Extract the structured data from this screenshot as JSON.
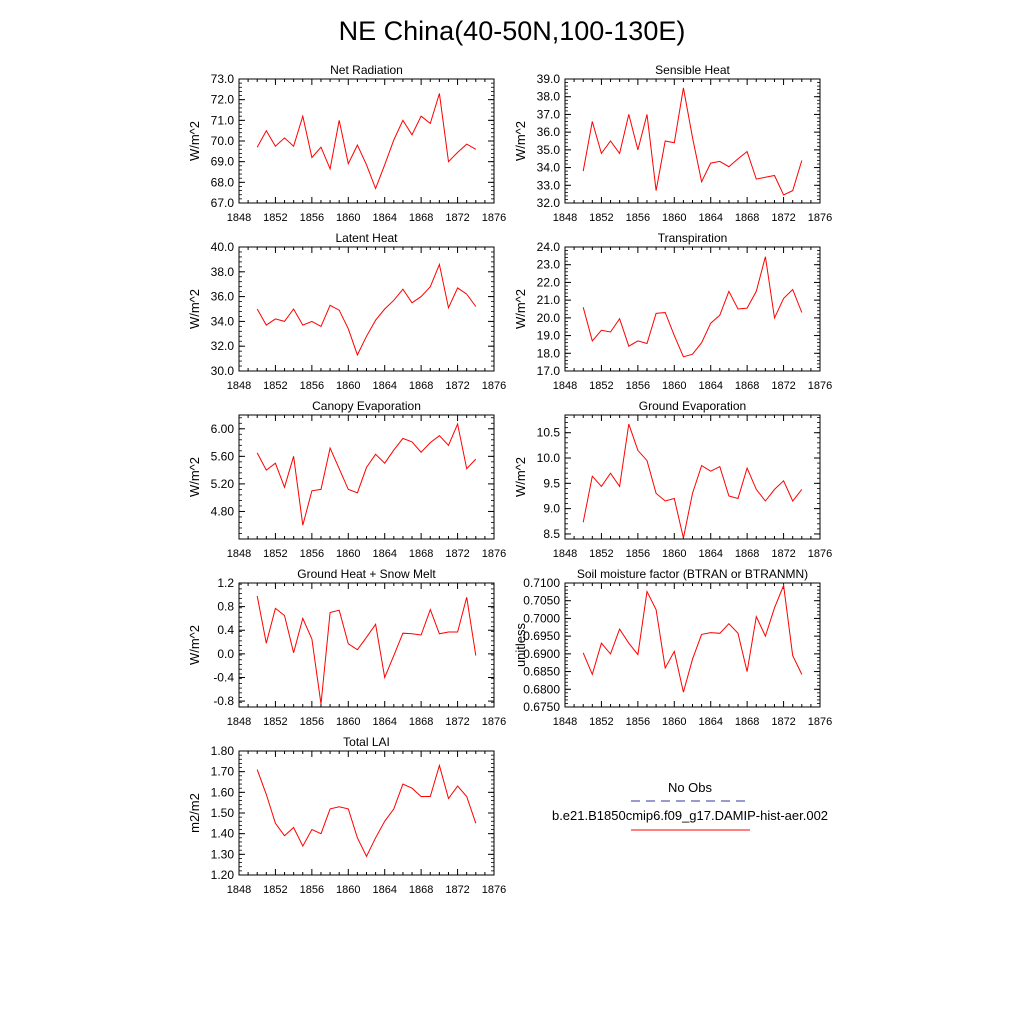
{
  "title": "NE China(40-50N,100-130E)",
  "legend": {
    "entries": [
      {
        "label": "No Obs",
        "color": "#3333aa",
        "dash": true
      },
      {
        "label": "b.e21.B1850cmip6.f09_g17.DAMIP-hist-aer.002",
        "color": "#ff0000",
        "dash": false
      }
    ]
  },
  "colors": {
    "series": "#ff0000",
    "obs": "#3333aa"
  },
  "chart_data": [
    {
      "type": "line",
      "title": "Net Radiation",
      "ylabel": "W/m^2",
      "xlim": [
        1848,
        1876
      ],
      "xticks": [
        1848,
        1852,
        1856,
        1860,
        1864,
        1868,
        1872,
        1876
      ],
      "ylim": [
        67.0,
        73.0
      ],
      "yticks": [
        "67.0",
        "68.0",
        "69.0",
        "70.0",
        "71.0",
        "72.0",
        "73.0"
      ],
      "x": [
        1850,
        1851,
        1852,
        1853,
        1854,
        1855,
        1856,
        1857,
        1858,
        1859,
        1860,
        1861,
        1862,
        1863,
        1864,
        1865,
        1866,
        1867,
        1868,
        1869,
        1870,
        1871,
        1872,
        1873,
        1874
      ],
      "series": [
        {
          "name": "b.e21.B1850cmip6.f09_g17.DAMIP-hist-aer.002",
          "values": [
            69.7,
            70.5,
            69.75,
            70.15,
            69.75,
            71.2,
            69.2,
            69.7,
            68.65,
            71.0,
            68.9,
            69.8,
            68.85,
            67.7,
            68.85,
            70.05,
            71.0,
            70.3,
            71.2,
            70.85,
            72.3,
            69.0,
            69.45,
            69.85,
            69.6
          ]
        }
      ]
    },
    {
      "type": "line",
      "title": "Sensible Heat",
      "ylabel": "W/m^2",
      "xlim": [
        1848,
        1876
      ],
      "xticks": [
        1848,
        1852,
        1856,
        1860,
        1864,
        1868,
        1872,
        1876
      ],
      "ylim": [
        32.0,
        39.0
      ],
      "yticks": [
        "32.0",
        "33.0",
        "34.0",
        "35.0",
        "36.0",
        "37.0",
        "38.0",
        "39.0"
      ],
      "x": [
        1850,
        1851,
        1852,
        1853,
        1854,
        1855,
        1856,
        1857,
        1858,
        1859,
        1860,
        1861,
        1862,
        1863,
        1864,
        1865,
        1866,
        1867,
        1868,
        1869,
        1870,
        1871,
        1872,
        1873,
        1874
      ],
      "series": [
        {
          "name": "b.e21.B1850cmip6.f09_g17.DAMIP-hist-aer.002",
          "values": [
            33.8,
            36.6,
            34.8,
            35.5,
            34.8,
            37.0,
            35.0,
            37.0,
            32.7,
            35.5,
            35.4,
            38.5,
            35.7,
            33.2,
            34.25,
            34.35,
            34.05,
            34.5,
            34.9,
            33.35,
            33.45,
            33.55,
            32.45,
            32.7,
            34.4
          ]
        }
      ]
    },
    {
      "type": "line",
      "title": "Latent Heat",
      "ylabel": "W/m^2",
      "xlim": [
        1848,
        1876
      ],
      "xticks": [
        1848,
        1852,
        1856,
        1860,
        1864,
        1868,
        1872,
        1876
      ],
      "ylim": [
        30.0,
        40.0
      ],
      "yticks": [
        "30.0",
        "32.0",
        "34.0",
        "36.0",
        "38.0",
        "40.0"
      ],
      "x": [
        1850,
        1851,
        1852,
        1853,
        1854,
        1855,
        1856,
        1857,
        1858,
        1859,
        1860,
        1861,
        1862,
        1863,
        1864,
        1865,
        1866,
        1867,
        1868,
        1869,
        1870,
        1871,
        1872,
        1873,
        1874
      ],
      "series": [
        {
          "name": "b.e21.B1850cmip6.f09_g17.DAMIP-hist-aer.002",
          "values": [
            35.0,
            33.7,
            34.2,
            34.0,
            35.0,
            33.7,
            34.0,
            33.6,
            35.3,
            34.9,
            33.4,
            31.3,
            32.8,
            34.1,
            35.0,
            35.7,
            36.6,
            35.5,
            36.0,
            36.8,
            38.6,
            35.1,
            36.7,
            36.2,
            35.2
          ]
        }
      ]
    },
    {
      "type": "line",
      "title": "Transpiration",
      "ylabel": "W/m^2",
      "xlim": [
        1848,
        1876
      ],
      "xticks": [
        1848,
        1852,
        1856,
        1860,
        1864,
        1868,
        1872,
        1876
      ],
      "ylim": [
        17.0,
        24.0
      ],
      "yticks": [
        "17.0",
        "18.0",
        "19.0",
        "20.0",
        "21.0",
        "22.0",
        "23.0",
        "24.0"
      ],
      "x": [
        1850,
        1851,
        1852,
        1853,
        1854,
        1855,
        1856,
        1857,
        1858,
        1859,
        1860,
        1861,
        1862,
        1863,
        1864,
        1865,
        1866,
        1867,
        1868,
        1869,
        1870,
        1871,
        1872,
        1873,
        1874
      ],
      "series": [
        {
          "name": "b.e21.B1850cmip6.f09_g17.DAMIP-hist-aer.002",
          "values": [
            20.6,
            18.7,
            19.3,
            19.2,
            19.95,
            18.4,
            18.7,
            18.55,
            20.25,
            20.3,
            19.0,
            17.8,
            17.95,
            18.6,
            19.7,
            20.15,
            21.5,
            20.5,
            20.55,
            21.5,
            23.45,
            20.0,
            21.1,
            21.6,
            20.3
          ]
        }
      ]
    },
    {
      "type": "line",
      "title": "Canopy Evaporation",
      "ylabel": "W/m^2",
      "xlim": [
        1848,
        1876
      ],
      "xticks": [
        1848,
        1852,
        1856,
        1860,
        1864,
        1868,
        1872,
        1876
      ],
      "ylim": [
        4.4,
        6.2
      ],
      "yticks": [
        "4.80",
        "5.20",
        "5.60",
        "6.00"
      ],
      "ytick_values": [
        4.8,
        5.2,
        5.6,
        6.0
      ],
      "x": [
        1850,
        1851,
        1852,
        1853,
        1854,
        1855,
        1856,
        1857,
        1858,
        1859,
        1860,
        1861,
        1862,
        1863,
        1864,
        1865,
        1866,
        1867,
        1868,
        1869,
        1870,
        1871,
        1872,
        1873,
        1874
      ],
      "series": [
        {
          "name": "b.e21.B1850cmip6.f09_g17.DAMIP-hist-aer.002",
          "values": [
            5.65,
            5.4,
            5.5,
            5.15,
            5.6,
            4.6,
            5.1,
            5.12,
            5.72,
            5.42,
            5.12,
            5.07,
            5.44,
            5.63,
            5.5,
            5.69,
            5.86,
            5.81,
            5.66,
            5.8,
            5.9,
            5.76,
            6.07,
            5.42,
            5.56
          ]
        }
      ]
    },
    {
      "type": "line",
      "title": "Ground Evaporation",
      "ylabel": "W/m^2",
      "xlim": [
        1848,
        1876
      ],
      "xticks": [
        1848,
        1852,
        1856,
        1860,
        1864,
        1868,
        1872,
        1876
      ],
      "ylim": [
        8.4,
        10.85
      ],
      "yticks": [
        "8.5",
        "9.0",
        "9.5",
        "10.0",
        "10.5"
      ],
      "ytick_values": [
        8.5,
        9.0,
        9.5,
        10.0,
        10.5
      ],
      "x": [
        1850,
        1851,
        1852,
        1853,
        1854,
        1855,
        1856,
        1857,
        1858,
        1859,
        1860,
        1861,
        1862,
        1863,
        1864,
        1865,
        1866,
        1867,
        1868,
        1869,
        1870,
        1871,
        1872,
        1873,
        1874
      ],
      "series": [
        {
          "name": "b.e21.B1850cmip6.f09_g17.DAMIP-hist-aer.002",
          "values": [
            8.73,
            9.64,
            9.44,
            9.7,
            9.44,
            10.67,
            10.15,
            9.95,
            9.3,
            9.15,
            9.2,
            8.42,
            9.3,
            9.85,
            9.74,
            9.83,
            9.25,
            9.2,
            9.8,
            9.38,
            9.15,
            9.38,
            9.55,
            9.15,
            9.38
          ]
        }
      ]
    },
    {
      "type": "line",
      "title": "Ground Heat + Snow Melt",
      "ylabel": "W/m^2",
      "xlim": [
        1848,
        1876
      ],
      "xticks": [
        1848,
        1852,
        1856,
        1860,
        1864,
        1868,
        1872,
        1876
      ],
      "ylim": [
        -0.9,
        1.2
      ],
      "yticks": [
        "-0.8",
        "-0.4",
        "0.0",
        "0.4",
        "0.8",
        "1.2"
      ],
      "ytick_values": [
        -0.8,
        -0.4,
        0.0,
        0.4,
        0.8,
        1.2
      ],
      "x": [
        1850,
        1851,
        1852,
        1853,
        1854,
        1855,
        1856,
        1857,
        1858,
        1859,
        1860,
        1861,
        1862,
        1863,
        1864,
        1865,
        1866,
        1867,
        1868,
        1869,
        1870,
        1871,
        1872,
        1873,
        1874
      ],
      "series": [
        {
          "name": "b.e21.B1850cmip6.f09_g17.DAMIP-hist-aer.002",
          "values": [
            0.98,
            0.18,
            0.77,
            0.65,
            0.02,
            0.6,
            0.25,
            -0.85,
            0.7,
            0.74,
            0.17,
            0.07,
            0.28,
            0.5,
            -0.4,
            -0.03,
            0.35,
            0.34,
            0.32,
            0.75,
            0.34,
            0.37,
            0.37,
            0.96,
            -0.03
          ]
        }
      ]
    },
    {
      "type": "line",
      "title": "Soil moisture factor (BTRAN or BTRANMN)",
      "ylabel": "unitless",
      "xlim": [
        1848,
        1876
      ],
      "xticks": [
        1848,
        1852,
        1856,
        1860,
        1864,
        1868,
        1872,
        1876
      ],
      "ylim": [
        0.675,
        0.71
      ],
      "yticks": [
        "0.6750",
        "0.6800",
        "0.6850",
        "0.6900",
        "0.6950",
        "0.7000",
        "0.7050",
        "0.7100"
      ],
      "ytick_values": [
        0.675,
        0.68,
        0.685,
        0.69,
        0.695,
        0.7,
        0.705,
        0.71
      ],
      "x": [
        1850,
        1851,
        1852,
        1853,
        1854,
        1855,
        1856,
        1857,
        1858,
        1859,
        1860,
        1861,
        1862,
        1863,
        1864,
        1865,
        1866,
        1867,
        1868,
        1869,
        1870,
        1871,
        1872,
        1873,
        1874
      ],
      "series": [
        {
          "name": "b.e21.B1850cmip6.f09_g17.DAMIP-hist-aer.002",
          "values": [
            0.6903,
            0.6842,
            0.693,
            0.69,
            0.697,
            0.693,
            0.6898,
            0.7076,
            0.7025,
            0.686,
            0.6907,
            0.6792,
            0.6885,
            0.6955,
            0.696,
            0.6958,
            0.6985,
            0.6958,
            0.685,
            0.7005,
            0.695,
            0.703,
            0.7093,
            0.6895,
            0.6842
          ]
        }
      ]
    },
    {
      "type": "line",
      "title": "Total LAI",
      "ylabel": "m2/m2",
      "xlim": [
        1848,
        1876
      ],
      "xticks": [
        1848,
        1852,
        1856,
        1860,
        1864,
        1868,
        1872,
        1876
      ],
      "ylim": [
        1.2,
        1.8
      ],
      "yticks": [
        "1.20",
        "1.30",
        "1.40",
        "1.50",
        "1.60",
        "1.70",
        "1.80"
      ],
      "ytick_values": [
        1.2,
        1.3,
        1.4,
        1.5,
        1.6,
        1.7,
        1.8
      ],
      "x": [
        1850,
        1851,
        1852,
        1853,
        1854,
        1855,
        1856,
        1857,
        1858,
        1859,
        1860,
        1861,
        1862,
        1863,
        1864,
        1865,
        1866,
        1867,
        1868,
        1869,
        1870,
        1871,
        1872,
        1873,
        1874
      ],
      "series": [
        {
          "name": "b.e21.B1850cmip6.f09_g17.DAMIP-hist-aer.002",
          "values": [
            1.71,
            1.59,
            1.45,
            1.39,
            1.43,
            1.34,
            1.42,
            1.4,
            1.52,
            1.53,
            1.52,
            1.38,
            1.29,
            1.38,
            1.46,
            1.52,
            1.64,
            1.62,
            1.58,
            1.58,
            1.73,
            1.57,
            1.63,
            1.58,
            1.45
          ]
        }
      ]
    }
  ]
}
